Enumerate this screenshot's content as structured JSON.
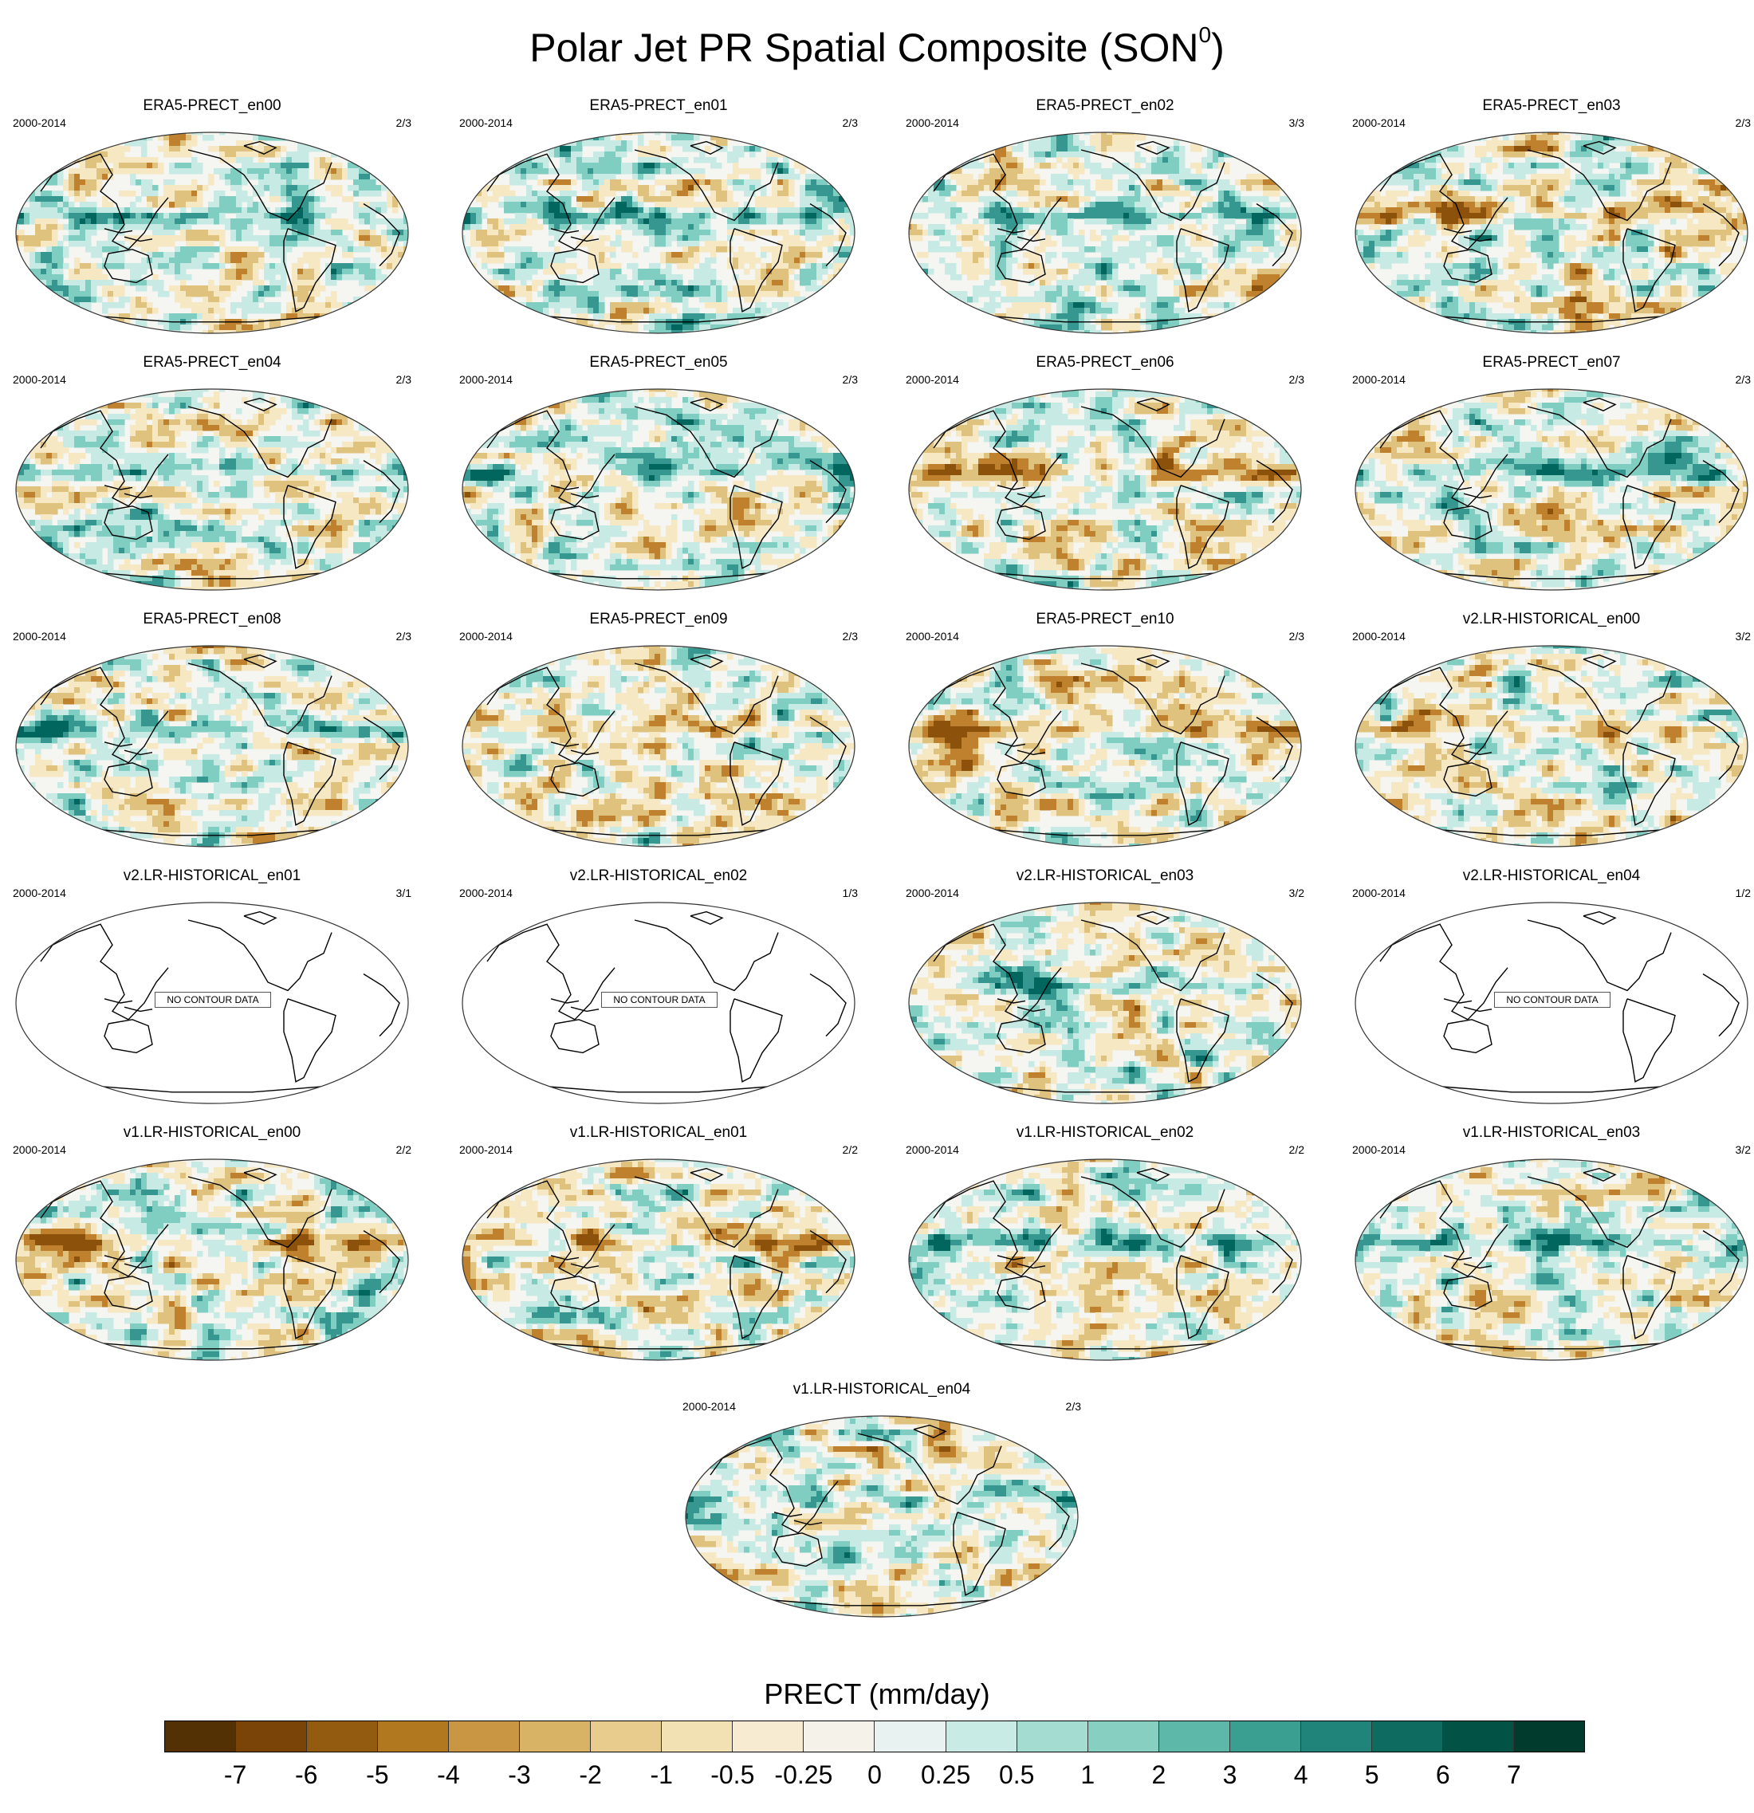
{
  "title": {
    "text": "Polar Jet PR Spatial Composite (SON",
    "sup": "0",
    "close": ")"
  },
  "no_data_label": "NO CONTOUR DATA",
  "panels": [
    {
      "title": "ERA5-PRECT_en00",
      "left": "2000-2014",
      "right": "2/3",
      "has_data": true
    },
    {
      "title": "ERA5-PRECT_en01",
      "left": "2000-2014",
      "right": "2/3",
      "has_data": true
    },
    {
      "title": "ERA5-PRECT_en02",
      "left": "2000-2014",
      "right": "3/3",
      "has_data": true
    },
    {
      "title": "ERA5-PRECT_en03",
      "left": "2000-2014",
      "right": "2/3",
      "has_data": true
    },
    {
      "title": "ERA5-PRECT_en04",
      "left": "2000-2014",
      "right": "2/3",
      "has_data": true
    },
    {
      "title": "ERA5-PRECT_en05",
      "left": "2000-2014",
      "right": "2/3",
      "has_data": true
    },
    {
      "title": "ERA5-PRECT_en06",
      "left": "2000-2014",
      "right": "2/3",
      "has_data": true
    },
    {
      "title": "ERA5-PRECT_en07",
      "left": "2000-2014",
      "right": "2/3",
      "has_data": true
    },
    {
      "title": "ERA5-PRECT_en08",
      "left": "2000-2014",
      "right": "2/3",
      "has_data": true
    },
    {
      "title": "ERA5-PRECT_en09",
      "left": "2000-2014",
      "right": "2/3",
      "has_data": true
    },
    {
      "title": "ERA5-PRECT_en10",
      "left": "2000-2014",
      "right": "2/3",
      "has_data": true
    },
    {
      "title": "v2.LR-HISTORICAL_en00",
      "left": "2000-2014",
      "right": "3/2",
      "has_data": true
    },
    {
      "title": "v2.LR-HISTORICAL_en01",
      "left": "2000-2014",
      "right": "3/1",
      "has_data": false
    },
    {
      "title": "v2.LR-HISTORICAL_en02",
      "left": "2000-2014",
      "right": "1/3",
      "has_data": false
    },
    {
      "title": "v2.LR-HISTORICAL_en03",
      "left": "2000-2014",
      "right": "3/2",
      "has_data": true
    },
    {
      "title": "v2.LR-HISTORICAL_en04",
      "left": "2000-2014",
      "right": "1/2",
      "has_data": false
    },
    {
      "title": "v1.LR-HISTORICAL_en00",
      "left": "2000-2014",
      "right": "2/2",
      "has_data": true
    },
    {
      "title": "v1.LR-HISTORICAL_en01",
      "left": "2000-2014",
      "right": "2/2",
      "has_data": true
    },
    {
      "title": "v1.LR-HISTORICAL_en02",
      "left": "2000-2014",
      "right": "2/2",
      "has_data": true
    },
    {
      "title": "v1.LR-HISTORICAL_en03",
      "left": "2000-2014",
      "right": "3/2",
      "has_data": true
    },
    {
      "title": "v1.LR-HISTORICAL_en04",
      "left": "2000-2014",
      "right": "2/3",
      "has_data": true
    }
  ],
  "colorbar": {
    "title": "PRECT (mm/day)",
    "labels": [
      "-7",
      "-6",
      "-5",
      "-4",
      "-3",
      "-2",
      "-1",
      "-0.5",
      "-0.25",
      "0",
      "0.25",
      "0.5",
      "1",
      "2",
      "3",
      "4",
      "5",
      "6",
      "7"
    ],
    "colors": [
      "#543005",
      "#7a4409",
      "#935b0f",
      "#b1781f",
      "#c99643",
      "#d8b366",
      "#e7cc8e",
      "#f2e1b3",
      "#f7ecd2",
      "#f5f2ea",
      "#e8f3f1",
      "#c8ebe5",
      "#a4dcd2",
      "#86cfc1",
      "#5db8a9",
      "#3a9e90",
      "#21847a",
      "#0d6b60",
      "#035246",
      "#013b2e"
    ],
    "color_map": {
      "neg": [
        "#8c510a",
        "#bf812d",
        "#dfc27d",
        "#f6e8c3"
      ],
      "neutral": "#f5f5f1",
      "pos": [
        "#c7eae5",
        "#80cdc1",
        "#35978f",
        "#01665e"
      ]
    }
  }
}
